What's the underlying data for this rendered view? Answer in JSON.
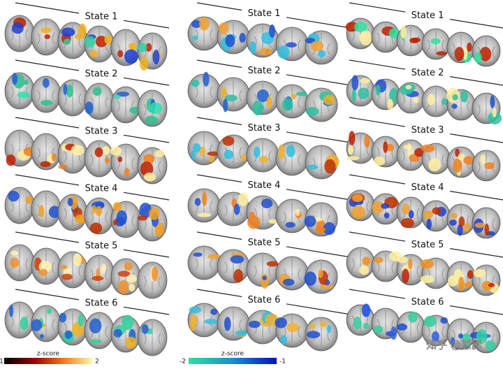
{
  "columns": [
    {
      "states": [
        "State 1",
        "State 2",
        "State 3",
        "State 4",
        "State 5",
        "State 6"
      ]
    },
    {
      "states": [
        "State 1",
        "State 2",
        "State 3",
        "State 4",
        "State 5",
        "State 6"
      ]
    },
    {
      "states": [
        "State 1",
        "State 2",
        "State 3",
        "State 4",
        "State 5",
        "State 6"
      ]
    }
  ],
  "colorbars": [
    {
      "label": "z-score",
      "min": 1,
      "max": 2
    },
    {
      "label": "z-score",
      "min": -2,
      "max": -1
    }
  ],
  "watermark": "知乎 @思影"
}
